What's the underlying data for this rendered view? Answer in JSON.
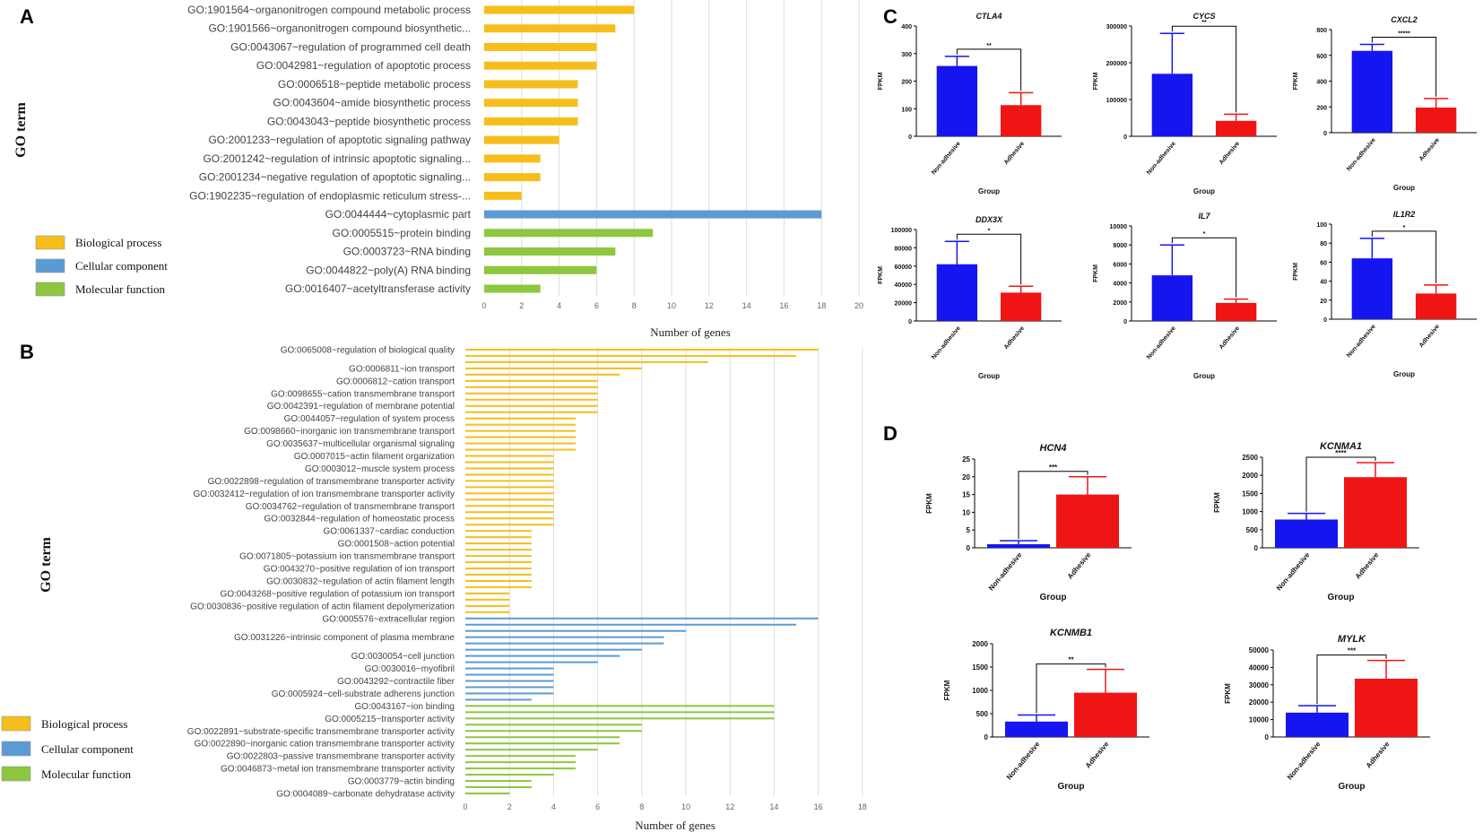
{
  "panel_labels": {
    "a": "A",
    "b": "B",
    "c": "C",
    "d": "D"
  },
  "colors": {
    "biological_process": "#F5BE1A",
    "cellular_component": "#5B9BD5",
    "molecular_function": "#8DC63F",
    "non_adhesive": "#1515F0",
    "adhesive": "#F01515"
  },
  "legend": {
    "biological_process": "Biological process",
    "cellular_component": "Cellular component",
    "molecular_function": "Molecular function"
  },
  "chart_data": [
    {
      "id": "A",
      "type": "bar",
      "orientation": "horizontal",
      "ylabel": "GO term",
      "xlabel": "Number of genes",
      "xlim": [
        0,
        20
      ],
      "xticks": [
        0,
        2,
        4,
        6,
        8,
        10,
        12,
        14,
        16,
        18,
        20
      ],
      "bars": [
        {
          "label": "GO:1901564~organonitrogen compound metabolic process",
          "value": 8,
          "cat": "biological_process"
        },
        {
          "label": "GO:1901566~organonitrogen compound biosynthetic...",
          "value": 7,
          "cat": "biological_process"
        },
        {
          "label": "GO:0043067~regulation of programmed cell death",
          "value": 6,
          "cat": "biological_process"
        },
        {
          "label": "GO:0042981~regulation of apoptotic process",
          "value": 6,
          "cat": "biological_process"
        },
        {
          "label": "GO:0006518~peptide metabolic process",
          "value": 5,
          "cat": "biological_process"
        },
        {
          "label": "GO:0043604~amide biosynthetic process",
          "value": 5,
          "cat": "biological_process"
        },
        {
          "label": "GO:0043043~peptide biosynthetic process",
          "value": 5,
          "cat": "biological_process"
        },
        {
          "label": "GO:2001233~regulation of apoptotic signaling pathway",
          "value": 4,
          "cat": "biological_process"
        },
        {
          "label": "GO:2001242~regulation of intrinsic apoptotic signaling...",
          "value": 3,
          "cat": "biological_process"
        },
        {
          "label": "GO:2001234~negative regulation of apoptotic signaling...",
          "value": 3,
          "cat": "biological_process"
        },
        {
          "label": "GO:1902235~regulation of endoplasmic reticulum stress-...",
          "value": 2,
          "cat": "biological_process"
        },
        {
          "label": "GO:0044444~cytoplasmic part",
          "value": 18,
          "cat": "cellular_component"
        },
        {
          "label": "GO:0005515~protein binding",
          "value": 9,
          "cat": "molecular_function"
        },
        {
          "label": "GO:0003723~RNA binding",
          "value": 7,
          "cat": "molecular_function"
        },
        {
          "label": "GO:0044822~poly(A) RNA binding",
          "value": 6,
          "cat": "molecular_function"
        },
        {
          "label": "GO:0016407~acetyltransferase activity",
          "value": 3,
          "cat": "molecular_function"
        }
      ]
    },
    {
      "id": "B",
      "type": "bar",
      "orientation": "horizontal",
      "ylabel": "GO term",
      "xlabel": "Number of genes",
      "xlim": [
        0,
        18
      ],
      "xticks": [
        0,
        2,
        4,
        6,
        8,
        10,
        12,
        14,
        16,
        18
      ],
      "bars": [
        {
          "label": "GO:0065008~regulation of biological quality",
          "value": 16,
          "cat": "biological_process"
        },
        {
          "label": "",
          "value": 15,
          "cat": "biological_process"
        },
        {
          "label": "",
          "value": 11,
          "cat": "biological_process"
        },
        {
          "label": "GO:0006811~ion transport",
          "value": 8,
          "cat": "biological_process"
        },
        {
          "label": "",
          "value": 7,
          "cat": "biological_process"
        },
        {
          "label": "GO:0006812~cation transport",
          "value": 6,
          "cat": "biological_process"
        },
        {
          "label": "",
          "value": 6,
          "cat": "biological_process"
        },
        {
          "label": "GO:0098655~cation transmembrane transport",
          "value": 6,
          "cat": "biological_process"
        },
        {
          "label": "",
          "value": 6,
          "cat": "biological_process"
        },
        {
          "label": "GO:0042391~regulation of membrane potential",
          "value": 6,
          "cat": "biological_process"
        },
        {
          "label": "",
          "value": 6,
          "cat": "biological_process"
        },
        {
          "label": "GO:0044057~regulation of system process",
          "value": 5,
          "cat": "biological_process"
        },
        {
          "label": "",
          "value": 5,
          "cat": "biological_process"
        },
        {
          "label": "GO:0098660~inorganic ion transmembrane transport",
          "value": 5,
          "cat": "biological_process"
        },
        {
          "label": "",
          "value": 5,
          "cat": "biological_process"
        },
        {
          "label": "GO:0035637~multicellular organismal signaling",
          "value": 5,
          "cat": "biological_process"
        },
        {
          "label": "",
          "value": 5,
          "cat": "biological_process"
        },
        {
          "label": "GO:0007015~actin filament organization",
          "value": 4,
          "cat": "biological_process"
        },
        {
          "label": "",
          "value": 4,
          "cat": "biological_process"
        },
        {
          "label": "GO:0003012~muscle system process",
          "value": 4,
          "cat": "biological_process"
        },
        {
          "label": "",
          "value": 4,
          "cat": "biological_process"
        },
        {
          "label": "GO:0022898~regulation of transmembrane transporter activity",
          "value": 4,
          "cat": "biological_process"
        },
        {
          "label": "",
          "value": 4,
          "cat": "biological_process"
        },
        {
          "label": "GO:0032412~regulation of ion transmembrane transporter activity",
          "value": 4,
          "cat": "biological_process"
        },
        {
          "label": "",
          "value": 4,
          "cat": "biological_process"
        },
        {
          "label": "GO:0034762~regulation of transmembrane transport",
          "value": 4,
          "cat": "biological_process"
        },
        {
          "label": "",
          "value": 4,
          "cat": "biological_process"
        },
        {
          "label": "GO:0032844~regulation of homeostatic process",
          "value": 4,
          "cat": "biological_process"
        },
        {
          "label": "",
          "value": 4,
          "cat": "biological_process"
        },
        {
          "label": "GO:0061337~cardiac conduction",
          "value": 3,
          "cat": "biological_process"
        },
        {
          "label": "",
          "value": 3,
          "cat": "biological_process"
        },
        {
          "label": "GO:0001508~action potential",
          "value": 3,
          "cat": "biological_process"
        },
        {
          "label": "",
          "value": 3,
          "cat": "biological_process"
        },
        {
          "label": "GO:0071805~potassium ion transmembrane transport",
          "value": 3,
          "cat": "biological_process"
        },
        {
          "label": "",
          "value": 3,
          "cat": "biological_process"
        },
        {
          "label": "GO:0043270~positive regulation of ion transport",
          "value": 3,
          "cat": "biological_process"
        },
        {
          "label": "",
          "value": 3,
          "cat": "biological_process"
        },
        {
          "label": "GO:0030832~regulation of actin filament length",
          "value": 3,
          "cat": "biological_process"
        },
        {
          "label": "",
          "value": 3,
          "cat": "biological_process"
        },
        {
          "label": "GO:0043268~positive regulation of potassium ion transport",
          "value": 2,
          "cat": "biological_process"
        },
        {
          "label": "",
          "value": 2,
          "cat": "biological_process"
        },
        {
          "label": "GO:0030836~positive regulation of actin filament depolymerization",
          "value": 2,
          "cat": "biological_process"
        },
        {
          "label": "",
          "value": 2,
          "cat": "biological_process"
        },
        {
          "label": "GO:0005576~extracellular region",
          "value": 16,
          "cat": "cellular_component"
        },
        {
          "label": "",
          "value": 15,
          "cat": "cellular_component"
        },
        {
          "label": "",
          "value": 10,
          "cat": "cellular_component"
        },
        {
          "label": "GO:0031226~intrinsic component of plasma membrane",
          "value": 9,
          "cat": "cellular_component"
        },
        {
          "label": "",
          "value": 9,
          "cat": "cellular_component"
        },
        {
          "label": "",
          "value": 8,
          "cat": "cellular_component"
        },
        {
          "label": "GO:0030054~cell junction",
          "value": 7,
          "cat": "cellular_component"
        },
        {
          "label": "",
          "value": 6,
          "cat": "cellular_component"
        },
        {
          "label": "GO:0030016~myofibril",
          "value": 4,
          "cat": "cellular_component"
        },
        {
          "label": "",
          "value": 4,
          "cat": "cellular_component"
        },
        {
          "label": "GO:0043292~contractile fiber",
          "value": 4,
          "cat": "cellular_component"
        },
        {
          "label": "",
          "value": 4,
          "cat": "cellular_component"
        },
        {
          "label": "GO:0005924~cell-substrate adherens junction",
          "value": 4,
          "cat": "cellular_component"
        },
        {
          "label": "",
          "value": 3,
          "cat": "cellular_component"
        },
        {
          "label": "GO:0043167~ion binding",
          "value": 14,
          "cat": "molecular_function"
        },
        {
          "label": "",
          "value": 14,
          "cat": "molecular_function"
        },
        {
          "label": "GO:0005215~transporter activity",
          "value": 14,
          "cat": "molecular_function"
        },
        {
          "label": "",
          "value": 8,
          "cat": "molecular_function"
        },
        {
          "label": "GO:0022891~substrate-specific transmembrane transporter activity",
          "value": 8,
          "cat": "molecular_function"
        },
        {
          "label": "",
          "value": 7,
          "cat": "molecular_function"
        },
        {
          "label": "GO:0022890~inorganic cation transmembrane transporter activity",
          "value": 7,
          "cat": "molecular_function"
        },
        {
          "label": "",
          "value": 6,
          "cat": "molecular_function"
        },
        {
          "label": "GO:0022803~passive transmembrane transporter activity",
          "value": 5,
          "cat": "molecular_function"
        },
        {
          "label": "",
          "value": 5,
          "cat": "molecular_function"
        },
        {
          "label": "GO:0046873~metal ion transmembrane transporter activity",
          "value": 5,
          "cat": "molecular_function"
        },
        {
          "label": "",
          "value": 4,
          "cat": "molecular_function"
        },
        {
          "label": "GO:0003779~actin binding",
          "value": 3,
          "cat": "molecular_function"
        },
        {
          "label": "",
          "value": 3,
          "cat": "molecular_function"
        },
        {
          "label": "GO:0004089~carbonate dehydratase activity",
          "value": 2,
          "cat": "molecular_function"
        }
      ]
    },
    {
      "id": "C-CTLA4",
      "type": "bar",
      "title": "CTLA4",
      "ylabel": "FPKM",
      "xlabel": "Group",
      "categories": [
        "Non-adhesive",
        "Adhesive"
      ],
      "values": [
        255,
        113
      ],
      "errors": [
        35,
        45
      ],
      "ylim": [
        0,
        400
      ],
      "yticks": [
        0,
        100,
        200,
        300,
        400
      ],
      "significance": "**"
    },
    {
      "id": "C-CYCS",
      "type": "bar",
      "title": "CYCS",
      "ylabel": "FPKM",
      "xlabel": "Group",
      "categories": [
        "Non-adhesive",
        "Adhesive"
      ],
      "values": [
        170000,
        42000
      ],
      "errors": [
        110000,
        18000
      ],
      "ylim": [
        0,
        300000
      ],
      "yticks": [
        0,
        100000,
        200000,
        300000
      ],
      "significance": "**"
    },
    {
      "id": "C-CXCL2",
      "type": "bar",
      "title": "CXCL2",
      "ylabel": "FPKM",
      "xlabel": "Group",
      "categories": [
        "Non-adhesive",
        "Adhesive"
      ],
      "values": [
        635,
        195
      ],
      "errors": [
        50,
        70
      ],
      "ylim": [
        0,
        800
      ],
      "yticks": [
        0,
        200,
        400,
        600,
        800
      ],
      "significance": "*****"
    },
    {
      "id": "C-DDX3X",
      "type": "bar",
      "title": "DDX3X",
      "ylabel": "FPKM",
      "xlabel": "Group",
      "categories": [
        "Non-adhesive",
        "Adhesive"
      ],
      "values": [
        62000,
        31000
      ],
      "errors": [
        25000,
        7000
      ],
      "ylim": [
        0,
        100000
      ],
      "yticks": [
        0,
        20000,
        40000,
        60000,
        80000,
        100000
      ],
      "significance": "*"
    },
    {
      "id": "C-IL7",
      "type": "bar",
      "title": "IL7",
      "ylabel": "FPKM",
      "xlabel": "Group",
      "categories": [
        "Non-adhesive",
        "Adhesive"
      ],
      "values": [
        4800,
        1900
      ],
      "errors": [
        3200,
        400
      ],
      "ylim": [
        0,
        10000
      ],
      "yticks": [
        0,
        2000,
        4000,
        6000,
        8000,
        10000
      ],
      "significance": "*"
    },
    {
      "id": "C-IL1R2",
      "type": "bar",
      "title": "IL1R2",
      "ylabel": "FPKM",
      "xlabel": "Group",
      "categories": [
        "Non-adhesive",
        "Adhesive"
      ],
      "values": [
        64,
        27
      ],
      "errors": [
        21,
        9
      ],
      "ylim": [
        0,
        100
      ],
      "yticks": [
        0,
        20,
        40,
        60,
        80,
        100
      ],
      "significance": "*"
    },
    {
      "id": "D-HCN4",
      "type": "bar",
      "title": "HCN4",
      "ylabel": "FPKM",
      "xlabel": "Group",
      "categories": [
        "Non-adhesive",
        "Adhesive"
      ],
      "values": [
        1,
        15
      ],
      "errors": [
        1,
        5
      ],
      "ylim": [
        0,
        25
      ],
      "yticks": [
        0,
        5,
        10,
        15,
        20,
        25
      ],
      "significance": "***"
    },
    {
      "id": "D-KCNMA1",
      "type": "bar",
      "title": "KCNMA1",
      "ylabel": "FPKM",
      "xlabel": "Group",
      "categories": [
        "Non-adhesive",
        "Adhesive"
      ],
      "values": [
        780,
        1950
      ],
      "errors": [
        170,
        400
      ],
      "ylim": [
        0,
        2500
      ],
      "yticks": [
        0,
        500,
        1000,
        1500,
        2000,
        2500
      ],
      "significance": "****"
    },
    {
      "id": "D-KCNMB1",
      "type": "bar",
      "title": "KCNMB1",
      "ylabel": "FPKM",
      "xlabel": "Group",
      "categories": [
        "Non-adhesive",
        "Adhesive"
      ],
      "values": [
        330,
        950
      ],
      "errors": [
        140,
        500
      ],
      "ylim": [
        0,
        2000
      ],
      "yticks": [
        0,
        500,
        1000,
        1500,
        2000
      ],
      "significance": "**"
    },
    {
      "id": "D-MYLK",
      "type": "bar",
      "title": "MYLK",
      "ylabel": "FPKM",
      "xlabel": "Group",
      "categories": [
        "Non-adhesive",
        "Adhesive"
      ],
      "values": [
        14000,
        33500
      ],
      "errors": [
        4000,
        10500
      ],
      "ylim": [
        0,
        50000
      ],
      "yticks": [
        0,
        10000,
        20000,
        30000,
        40000,
        50000
      ],
      "significance": "***"
    }
  ]
}
